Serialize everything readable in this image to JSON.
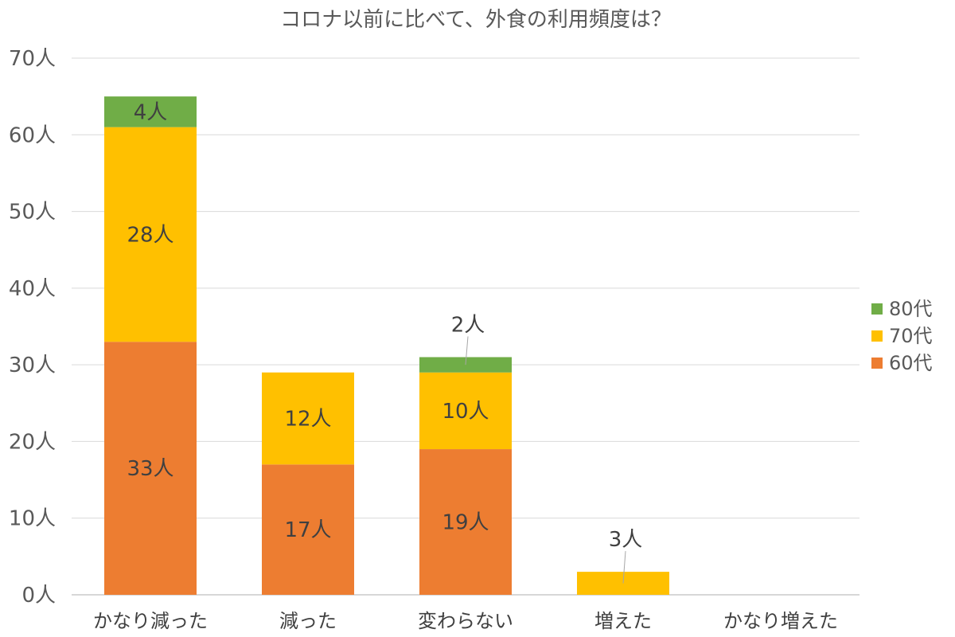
{
  "chart_data": {
    "type": "bar",
    "stacked": true,
    "title": "コロナ以前に比べて、外食の利用頻度は？",
    "categories": [
      "かなり減った",
      "減った",
      "変わらない",
      "増えた",
      "かなり増えた"
    ],
    "series": [
      {
        "name": "60代",
        "color": "#ed7d31",
        "values": [
          33,
          17,
          19,
          0,
          0
        ]
      },
      {
        "name": "70代",
        "color": "#ffc000",
        "values": [
          28,
          12,
          10,
          3,
          0
        ]
      },
      {
        "name": "80代",
        "color": "#70ad47",
        "values": [
          4,
          0,
          2,
          0,
          0
        ]
      }
    ],
    "data_labels": [
      [
        "33人",
        "17人",
        "19人",
        "",
        ""
      ],
      [
        "28人",
        "12人",
        "10人",
        "3人",
        ""
      ],
      [
        "4人",
        "",
        "2人",
        "",
        ""
      ]
    ],
    "ylim": [
      0,
      70
    ],
    "yticks": [
      0,
      10,
      20,
      30,
      40,
      50,
      60,
      70
    ],
    "ytick_labels": [
      "0人",
      "10人",
      "20人",
      "30人",
      "40人",
      "50人",
      "60人",
      "70人"
    ],
    "grid": true,
    "legend_position": "right",
    "legend_order": [
      "80代",
      "70代",
      "60代"
    ]
  }
}
